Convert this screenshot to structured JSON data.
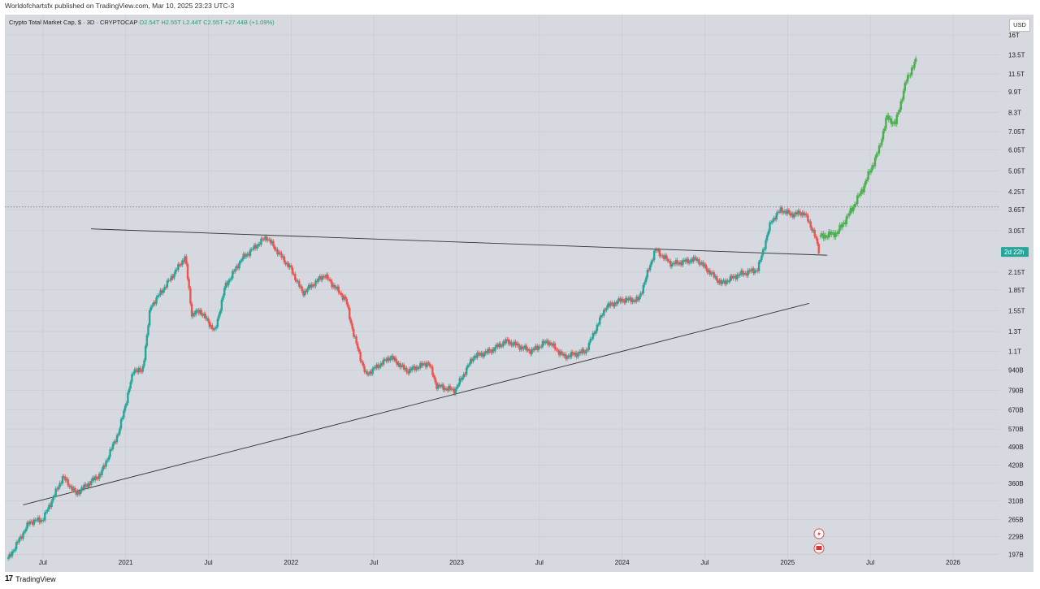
{
  "header": {
    "published": "Worldofchartsfx published on TradingView.com, Mar 10, 2025 23:23 UTC-3"
  },
  "legend": {
    "symbol": "Crypto Total Market Cap, $ · 3D · CRYPTOCAP",
    "open": "O2.54T",
    "high": "H2.55T",
    "low": "L2.44T",
    "close": "C2.55T",
    "change": "+27.44B (+1.09%)"
  },
  "currency_button": "USD",
  "footer": {
    "brand": "TradingView"
  },
  "colors": {
    "bull": "#26a69a",
    "bear": "#ef5350",
    "projection": "#4caf50",
    "label_bg": "#26a69a"
  },
  "chart_data": {
    "type": "candlestick",
    "title": "Crypto Total Market Cap, $ · 3D · CRYPTOCAP",
    "scale": "log",
    "ylim": [
      170000000000,
      19000000000000
    ],
    "x_ticks": [
      {
        "t": 2020.5,
        "label": "Jul"
      },
      {
        "t": 2021.0,
        "label": "2021"
      },
      {
        "t": 2021.5,
        "label": "Jul"
      },
      {
        "t": 2022.0,
        "label": "2022"
      },
      {
        "t": 2022.5,
        "label": "Jul"
      },
      {
        "t": 2023.0,
        "label": "2023"
      },
      {
        "t": 2023.5,
        "label": "Jul"
      },
      {
        "t": 2024.0,
        "label": "2024"
      },
      {
        "t": 2024.5,
        "label": "Jul"
      },
      {
        "t": 2025.0,
        "label": "2025"
      },
      {
        "t": 2025.5,
        "label": "Jul"
      },
      {
        "t": 2026.0,
        "label": "2026"
      }
    ],
    "y_ticks": [
      {
        "v": 16000000000000,
        "label": "16T"
      },
      {
        "v": 13500000000000,
        "label": "13.5T"
      },
      {
        "v": 11500000000000,
        "label": "11.5T"
      },
      {
        "v": 9900000000000,
        "label": "9.9T"
      },
      {
        "v": 8300000000000,
        "label": "8.3T"
      },
      {
        "v": 7050000000000,
        "label": "7.05T"
      },
      {
        "v": 6050000000000,
        "label": "6.05T"
      },
      {
        "v": 5050000000000,
        "label": "5.05T"
      },
      {
        "v": 4250000000000,
        "label": "4.25T"
      },
      {
        "v": 3650000000000,
        "label": "3.65T"
      },
      {
        "v": 3050000000000,
        "label": "3.05T"
      },
      {
        "v": 2150000000000,
        "label": "2.15T"
      },
      {
        "v": 1850000000000,
        "label": "1.85T"
      },
      {
        "v": 1550000000000,
        "label": "1.55T"
      },
      {
        "v": 1300000000000,
        "label": "1.3T"
      },
      {
        "v": 1100000000000,
        "label": "1.1T"
      },
      {
        "v": 940000000000,
        "label": "940B"
      },
      {
        "v": 790000000000,
        "label": "790B"
      },
      {
        "v": 670000000000,
        "label": "670B"
      },
      {
        "v": 570000000000,
        "label": "570B"
      },
      {
        "v": 490000000000,
        "label": "490B"
      },
      {
        "v": 420000000000,
        "label": "420B"
      },
      {
        "v": 360000000000,
        "label": "360B"
      },
      {
        "v": 310000000000,
        "label": "310B"
      },
      {
        "v": 265000000000,
        "label": "265B"
      },
      {
        "v": 229000000000,
        "label": "229B"
      },
      {
        "v": 197000000000,
        "label": "197B"
      }
    ],
    "price_series": [
      {
        "t": 2020.29,
        "v": 190000000000
      },
      {
        "t": 2020.42,
        "v": 260000000000
      },
      {
        "t": 2020.5,
        "v": 265000000000
      },
      {
        "t": 2020.62,
        "v": 380000000000
      },
      {
        "t": 2020.7,
        "v": 330000000000
      },
      {
        "t": 2020.85,
        "v": 390000000000
      },
      {
        "t": 2020.96,
        "v": 560000000000
      },
      {
        "t": 2021.05,
        "v": 950000000000
      },
      {
        "t": 2021.1,
        "v": 920000000000
      },
      {
        "t": 2021.15,
        "v": 1600000000000
      },
      {
        "t": 2021.25,
        "v": 1950000000000
      },
      {
        "t": 2021.36,
        "v": 2450000000000
      },
      {
        "t": 2021.4,
        "v": 1500000000000
      },
      {
        "t": 2021.45,
        "v": 1550000000000
      },
      {
        "t": 2021.54,
        "v": 1300000000000
      },
      {
        "t": 2021.6,
        "v": 1900000000000
      },
      {
        "t": 2021.7,
        "v": 2400000000000
      },
      {
        "t": 2021.85,
        "v": 2900000000000
      },
      {
        "t": 2021.93,
        "v": 2500000000000
      },
      {
        "t": 2022.0,
        "v": 2200000000000
      },
      {
        "t": 2022.07,
        "v": 1800000000000
      },
      {
        "t": 2022.2,
        "v": 2100000000000
      },
      {
        "t": 2022.33,
        "v": 1700000000000
      },
      {
        "t": 2022.38,
        "v": 1250000000000
      },
      {
        "t": 2022.45,
        "v": 900000000000
      },
      {
        "t": 2022.6,
        "v": 1050000000000
      },
      {
        "t": 2022.7,
        "v": 930000000000
      },
      {
        "t": 2022.83,
        "v": 1000000000000
      },
      {
        "t": 2022.88,
        "v": 820000000000
      },
      {
        "t": 2022.99,
        "v": 790000000000
      },
      {
        "t": 2023.1,
        "v": 1050000000000
      },
      {
        "t": 2023.2,
        "v": 1100000000000
      },
      {
        "t": 2023.3,
        "v": 1200000000000
      },
      {
        "t": 2023.45,
        "v": 1100000000000
      },
      {
        "t": 2023.55,
        "v": 1200000000000
      },
      {
        "t": 2023.65,
        "v": 1050000000000
      },
      {
        "t": 2023.78,
        "v": 1100000000000
      },
      {
        "t": 2023.9,
        "v": 1600000000000
      },
      {
        "t": 2024.0,
        "v": 1700000000000
      },
      {
        "t": 2024.1,
        "v": 1700000000000
      },
      {
        "t": 2024.2,
        "v": 2600000000000
      },
      {
        "t": 2024.3,
        "v": 2300000000000
      },
      {
        "t": 2024.45,
        "v": 2400000000000
      },
      {
        "t": 2024.6,
        "v": 1950000000000
      },
      {
        "t": 2024.7,
        "v": 2100000000000
      },
      {
        "t": 2024.82,
        "v": 2200000000000
      },
      {
        "t": 2024.9,
        "v": 3300000000000
      },
      {
        "t": 2024.96,
        "v": 3650000000000
      },
      {
        "t": 2025.02,
        "v": 3500000000000
      },
      {
        "t": 2025.1,
        "v": 3550000000000
      },
      {
        "t": 2025.16,
        "v": 3000000000000
      },
      {
        "t": 2025.19,
        "v": 2550000000000
      }
    ],
    "projection_series": [
      {
        "t": 2025.2,
        "v": 2900000000000
      },
      {
        "t": 2025.3,
        "v": 3000000000000
      },
      {
        "t": 2025.37,
        "v": 3500000000000
      },
      {
        "t": 2025.45,
        "v": 4300000000000
      },
      {
        "t": 2025.55,
        "v": 6000000000000
      },
      {
        "t": 2025.6,
        "v": 8000000000000
      },
      {
        "t": 2025.65,
        "v": 7500000000000
      },
      {
        "t": 2025.72,
        "v": 11000000000000
      },
      {
        "t": 2025.78,
        "v": 13000000000000
      }
    ],
    "trendlines": [
      {
        "name": "descending-resistance",
        "t1": 2020.79,
        "v1": 3100000000000,
        "t2": 2025.24,
        "v2": 2480000000000
      },
      {
        "name": "ascending-support",
        "t1": 2020.38,
        "v1": 300000000000,
        "t2": 2025.13,
        "v2": 1650000000000
      }
    ],
    "horizontal_level": 3730000000000,
    "current_label": "2d 22h",
    "current_value": 2550000000000
  }
}
